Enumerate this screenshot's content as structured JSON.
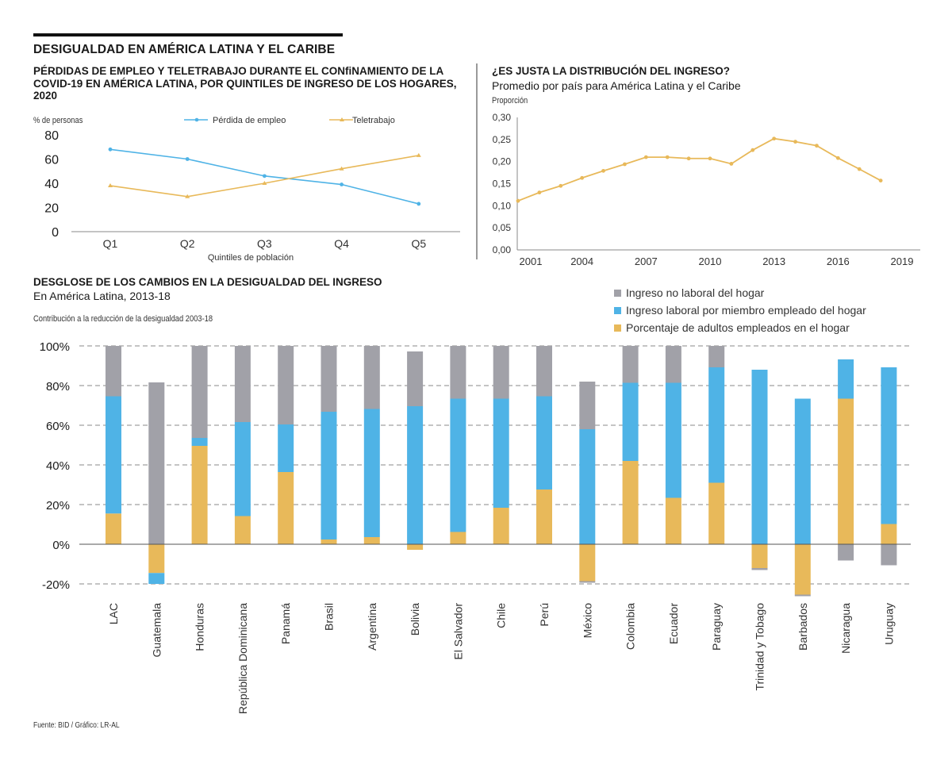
{
  "header": {
    "main_title": "DESIGUALDAD EN AMÉRICA LATINA Y EL CARIBE"
  },
  "colors": {
    "blue": "#4fb3e6",
    "orange": "#e8b95a",
    "gray": "#a1a1a8",
    "axis": "#7a7a7a",
    "grid": "#7a7a7a"
  },
  "chart_data": [
    {
      "type": "line",
      "title": "PÉRDIDAS DE EMPLEO Y TELETRABAJO DURANTE EL CONfiNAMIENTO DE LA COVID-19 EN AMÉRICA LATINA, POR QUINTILES DE INGRESO DE LOS HOGARES, 2020",
      "ylabel": "% de personas",
      "xlabel": "Quintiles de población",
      "categories": [
        "Q1",
        "Q2",
        "Q3",
        "Q4",
        "Q5"
      ],
      "ylim": [
        0,
        80
      ],
      "yticks": [
        0,
        20,
        40,
        60,
        80
      ],
      "ytick_labels": [
        "0",
        "20",
        "40",
        "60",
        "80"
      ],
      "legend_position": "top",
      "series": [
        {
          "name": "Pérdida de empleo",
          "color": "#4fb3e6",
          "marker": "circle",
          "values": [
            68,
            60,
            46,
            39,
            23
          ]
        },
        {
          "name": "Teletrabajo",
          "color": "#e8b95a",
          "marker": "triangle",
          "values": [
            38,
            29,
            40,
            52,
            63
          ]
        }
      ]
    },
    {
      "type": "line",
      "title": "¿ES JUSTA LA DISTRIBUCIÓN DEL INGRESO?",
      "subtitle": "Promedio por país para América Latina y el Caribe",
      "ylabel": "Proporción",
      "xlabel": "",
      "ylim": [
        0,
        0.3
      ],
      "yticks": [
        0,
        0.05,
        0.1,
        0.15,
        0.2,
        0.25,
        0.3
      ],
      "ytick_labels": [
        "0,00",
        "0,05",
        "0,10",
        "0,15",
        "0,20",
        "0,25",
        "0,30"
      ],
      "xlim": [
        2001,
        2019
      ],
      "xticks": [
        2001,
        2004,
        2007,
        2010,
        2013,
        2016,
        2019
      ],
      "xtick_labels": [
        "2001",
        "2004",
        "2007",
        "2010",
        "2013",
        "2016",
        "2019"
      ],
      "series": [
        {
          "name": "Proporción",
          "color": "#e8b95a",
          "x": [
            2001,
            2002,
            2003,
            2004,
            2005,
            2006,
            2007,
            2008,
            2009,
            2010,
            2011,
            2012,
            2013,
            2014,
            2015,
            2016,
            2017,
            2018
          ],
          "values": [
            0.111,
            0.13,
            0.145,
            0.163,
            0.179,
            0.194,
            0.21,
            0.21,
            0.207,
            0.207,
            0.195,
            0.226,
            0.252,
            0.245,
            0.236,
            0.208,
            0.183,
            0.157
          ]
        }
      ]
    },
    {
      "type": "bar",
      "stacked": true,
      "title": "DESGLOSE DE LOS CAMBIOS EN LA DESIGUALDAD DEL INGRESO",
      "subtitle": "En América Latina, 2013-18",
      "ylabel": "Contribución a la reducción de la desigualdad 2003-18",
      "xlabel": "",
      "ylim": [
        -20,
        100
      ],
      "yticks": [
        -20,
        0,
        20,
        40,
        60,
        80,
        100
      ],
      "ytick_labels": [
        "-20%",
        "0%",
        "20%",
        "40%",
        "60%",
        "80%",
        "100%"
      ],
      "grid": true,
      "legend_position": "top-right",
      "categories": [
        "LAC",
        "Guatemala",
        "Honduras",
        "República Dominicana",
        "Panamá",
        "Brasil",
        "Argentina",
        "Bolivia",
        "El Salvador",
        "Chile",
        "Perú",
        "México",
        "Colombia",
        "Ecuador",
        "Paraguay",
        "Trinidad y Tobago",
        "Barbados",
        "Nicaragua",
        "Uruguay"
      ],
      "series": [
        {
          "name": "Porcentaje de adultos empleados en el hogar",
          "color": "#e8b95a",
          "values": [
            15.5,
            -14.5,
            49.6,
            14.2,
            36.4,
            2.4,
            3.6,
            -2.8,
            6.2,
            18.4,
            27.6,
            -18.6,
            42,
            23.4,
            31,
            -12,
            -25.4,
            73.4,
            10.2
          ]
        },
        {
          "name": "Ingreso laboral por miembro empleado del hogar",
          "color": "#4fb3e6",
          "values": [
            59.1,
            -5.5,
            4,
            47.4,
            24,
            64.4,
            64.6,
            69.6,
            67.2,
            55,
            47,
            58,
            39.4,
            58,
            58.2,
            88,
            73.4,
            19.8,
            79
          ]
        },
        {
          "name": "Ingreso no laboral del hogar",
          "color": "#a1a1a8",
          "values": [
            25.4,
            81.6,
            46.4,
            38.4,
            39.6,
            33.2,
            31.8,
            27.6,
            26.6,
            26.6,
            25.4,
            24,
            18.6,
            18.6,
            10.8,
            -1,
            -0.8,
            -8.2,
            -10.6
          ]
        }
      ],
      "negative_extras": {
        "México": {
          "gray_below": -0.8
        }
      }
    }
  ],
  "legend_bottom": [
    {
      "label": "Ingreso no laboral del hogar",
      "color": "#a1a1a8"
    },
    {
      "label": "Ingreso laboral por miembro empleado del hogar",
      "color": "#4fb3e6"
    },
    {
      "label": "Porcentaje de adultos empleados en el hogar",
      "color": "#e8b95a"
    }
  ],
  "footer": {
    "source": "Fuente: BID / Gráfico: LR-AL"
  }
}
